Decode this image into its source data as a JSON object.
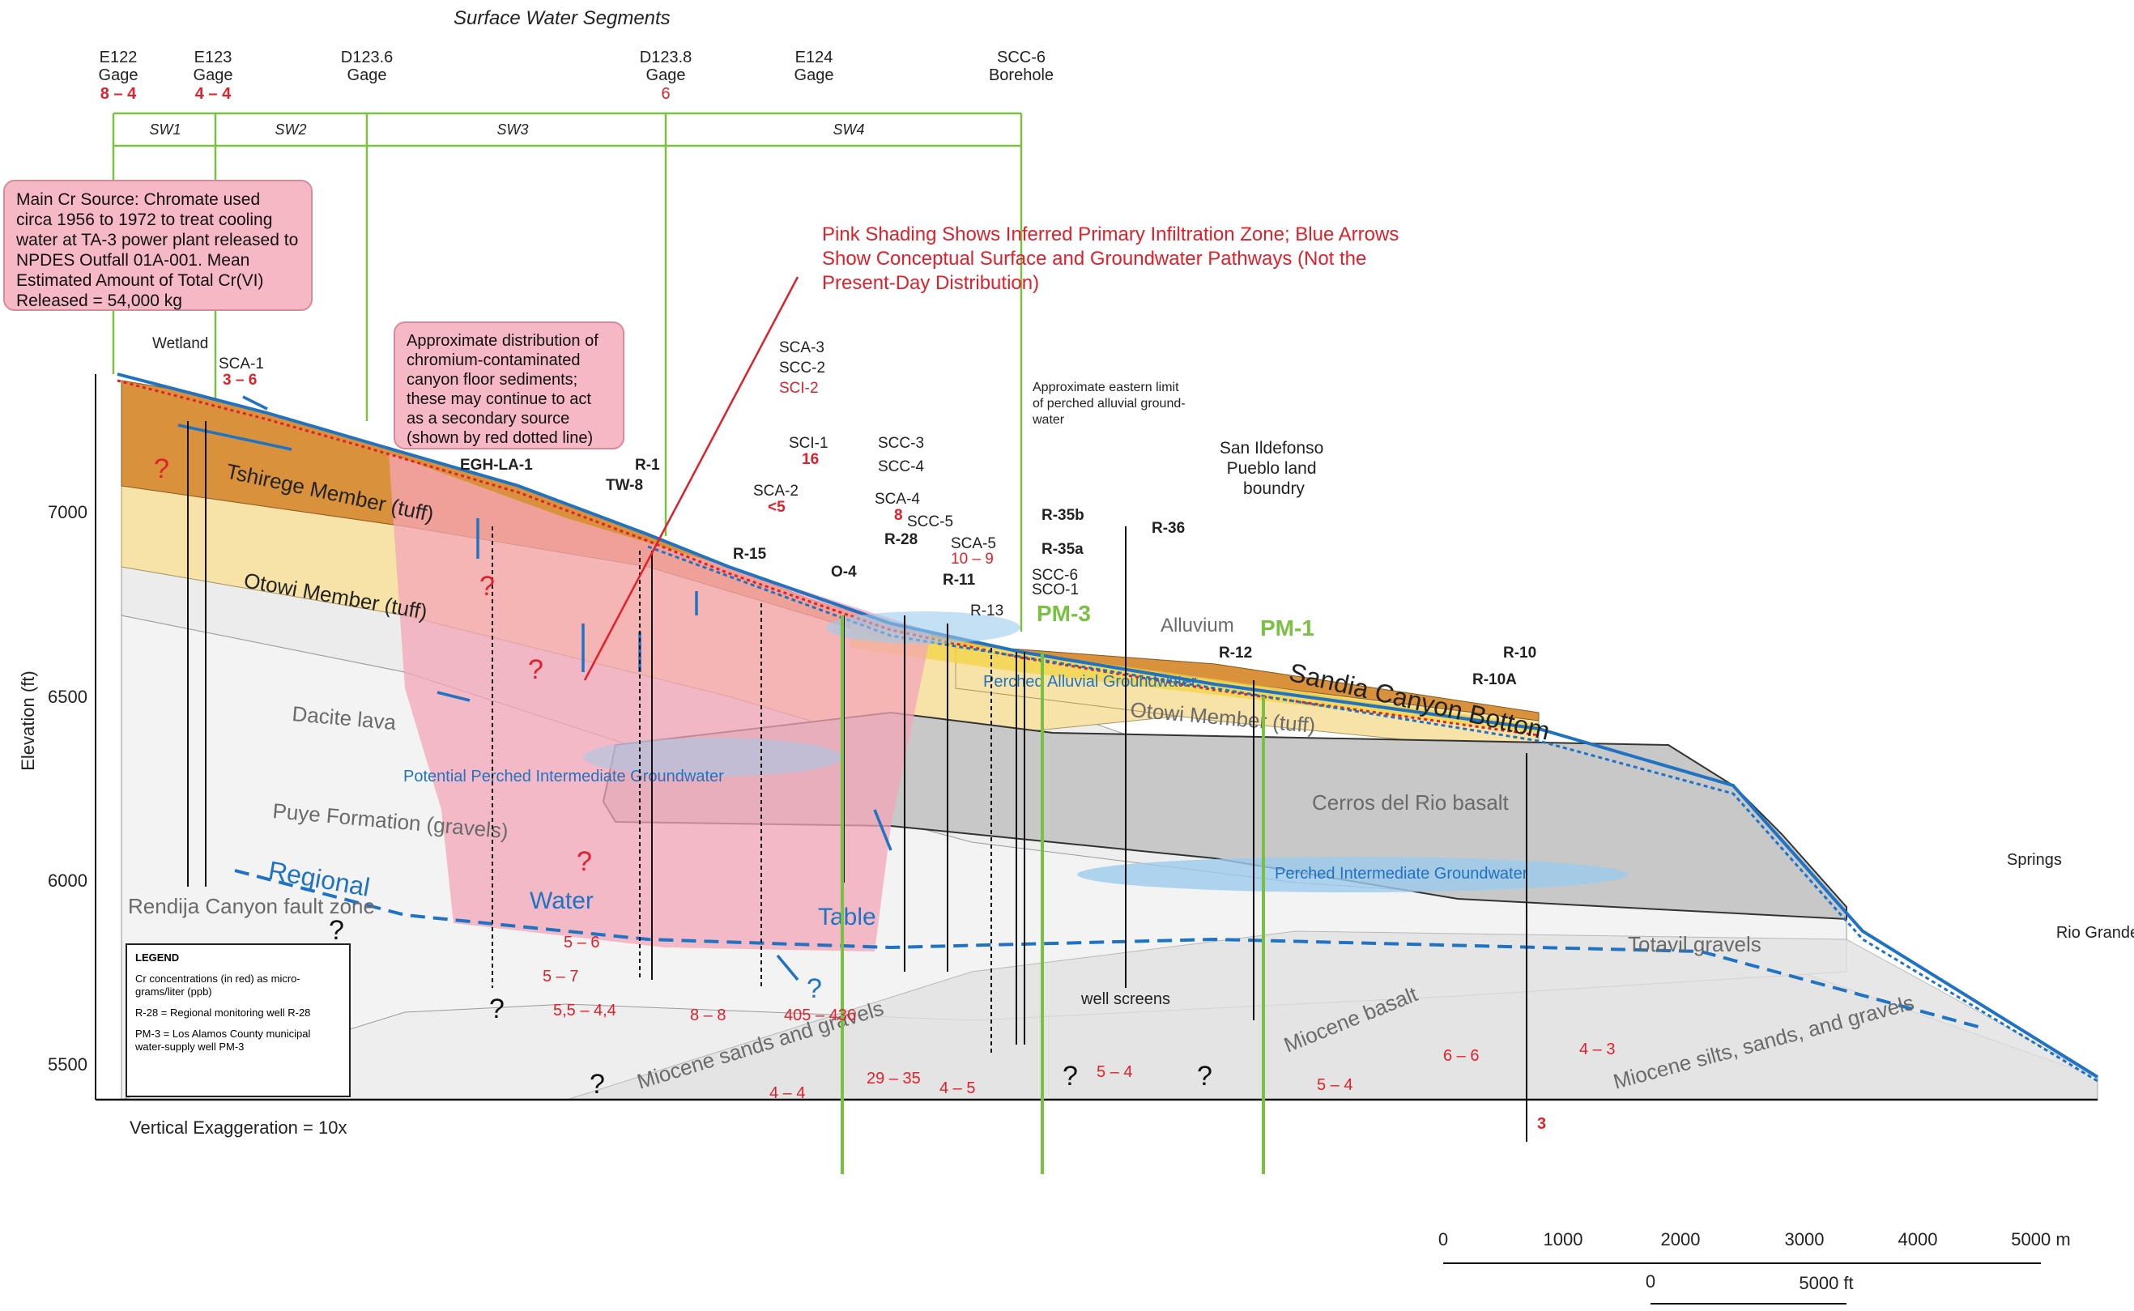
{
  "header": {
    "title": "Surface Water Segments"
  },
  "gages": [
    {
      "id": "E122",
      "sub": "Gage",
      "value": "8 – 4"
    },
    {
      "id": "E123",
      "sub": "Gage",
      "value": "4 – 4"
    },
    {
      "id": "D123.6",
      "sub": "Gage",
      "value": ""
    },
    {
      "id": "D123.8",
      "sub": "Gage",
      "value": "6"
    },
    {
      "id": "E124",
      "sub": "Gage",
      "value": ""
    },
    {
      "id": "SCC-6",
      "sub": "Borehole",
      "value": ""
    }
  ],
  "segments": [
    "SW1",
    "SW2",
    "SW3",
    "SW4"
  ],
  "notes": {
    "source": "Main Cr Source: Chromate used circa 1956 to 1972 to treat cooling water at TA-3 power plant released to NPDES Outfall 01A-001. Mean Estimated Amount of Total Cr(VI) Released = 54,000 kg",
    "sediments": "Approximate distribution of chromium-contaminated canyon floor sediments; these may continue to act as a secondary source (shown by red dotted line)",
    "infiltration": "Pink Shading Shows Inferred Primary Infiltration Zone; Blue Arrows Show Conceptual Surface and Groundwater Pathways (Not the Present-Day Distribution)",
    "alluvial_limit": "Approximate eastern limit of perched alluvial ground-water",
    "pueblo": "San Ildefonso Pueblo land boundry"
  },
  "axis": {
    "ylabel": "Elevation (ft)",
    "ticks": [
      "7000",
      "6500",
      "6000",
      "5500"
    ],
    "exaggeration": "Vertical Exaggeration = 10x"
  },
  "units": [
    "Tshirege Member (tuff)",
    "Otowi Member (tuff)",
    "Dacite lava",
    "Puye Formation (gravels)",
    "Cerros del Rio basalt",
    "Totavil gravels",
    "Miocene basalt",
    "Miocene sands and gravels",
    "Miocene silts, sands, and gravels",
    "Alluvium",
    "Otowi Member (tuff)",
    "Sandia Canyon Bottom",
    "Rendija Canyon fault zone"
  ],
  "water_labels": {
    "regional": "Regional",
    "water": "Water",
    "table": "Table",
    "perched_alluvial": "Perched Alluvial Groundwater",
    "potential_perched": "Potential Perched Intermediate Groundwater",
    "perched_intermediate": "Perched Intermediate Groundwater",
    "springs": "Springs",
    "rio": "Rio Grande",
    "well_screens": "well screens",
    "wetland": "Wetland"
  },
  "wells": [
    {
      "name": "SCA-1",
      "value": "3 – 6"
    },
    {
      "name": "EGH-LA-1",
      "value": ""
    },
    {
      "name": "R-1",
      "value": ""
    },
    {
      "name": "TW-8",
      "value": ""
    },
    {
      "name": "R-15",
      "value": ""
    },
    {
      "name": "SCA-3",
      "value": ""
    },
    {
      "name": "SCC-2",
      "value": ""
    },
    {
      "name": "SCI-2",
      "value": ""
    },
    {
      "name": "SCI-1",
      "value": "16"
    },
    {
      "name": "SCA-2",
      "value": "<5"
    },
    {
      "name": "SCC-3",
      "value": ""
    },
    {
      "name": "SCC-4",
      "value": ""
    },
    {
      "name": "SCA-4",
      "value": "8"
    },
    {
      "name": "O-4",
      "value": ""
    },
    {
      "name": "R-28",
      "value": ""
    },
    {
      "name": "SCC-5",
      "value": ""
    },
    {
      "name": "SCA-5",
      "value": "10 – 9"
    },
    {
      "name": "R-11",
      "value": ""
    },
    {
      "name": "R-13",
      "value": ""
    },
    {
      "name": "SCC-6",
      "value": ""
    },
    {
      "name": "SCO-1",
      "value": ""
    },
    {
      "name": "R-35b",
      "value": ""
    },
    {
      "name": "R-35a",
      "value": ""
    },
    {
      "name": "PM-3",
      "value": ""
    },
    {
      "name": "R-36",
      "value": ""
    },
    {
      "name": "PM-1",
      "value": ""
    },
    {
      "name": "R-12",
      "value": ""
    },
    {
      "name": "R-10",
      "value": ""
    },
    {
      "name": "R-10A",
      "value": ""
    }
  ],
  "deep_values": [
    "5 – 6",
    "5 – 7",
    "5,5 – 4,4",
    "8 – 8",
    "405 – 436",
    "4 – 4",
    "29 – 35",
    "4 – 5",
    "5 – 4",
    "5 – 4",
    "6 – 6",
    "4 – 3",
    "3"
  ],
  "legend": {
    "title": "LEGEND",
    "cr": "Cr concentrations (in red) as micro-grams/liter (ppb)",
    "r28": "R-28   = Regional monitoring well R-28",
    "pm3": "PM-3  = Los Alamos County municipal water-supply well PM-3"
  },
  "scale": {
    "m_ticks": [
      "0",
      "1000",
      "2000",
      "3000",
      "4000",
      "5000 m"
    ],
    "ft_ticks": [
      "0",
      "5000 ft"
    ]
  },
  "colors": {
    "tshirege": "#d9913c",
    "otowi": "#f7e3a8",
    "infiltration": "#f4a6b8",
    "basalt": "#c8c8c8",
    "arrow": "#1f73c2",
    "concentration": "#e0202a",
    "segment_line": "#7ac143"
  }
}
